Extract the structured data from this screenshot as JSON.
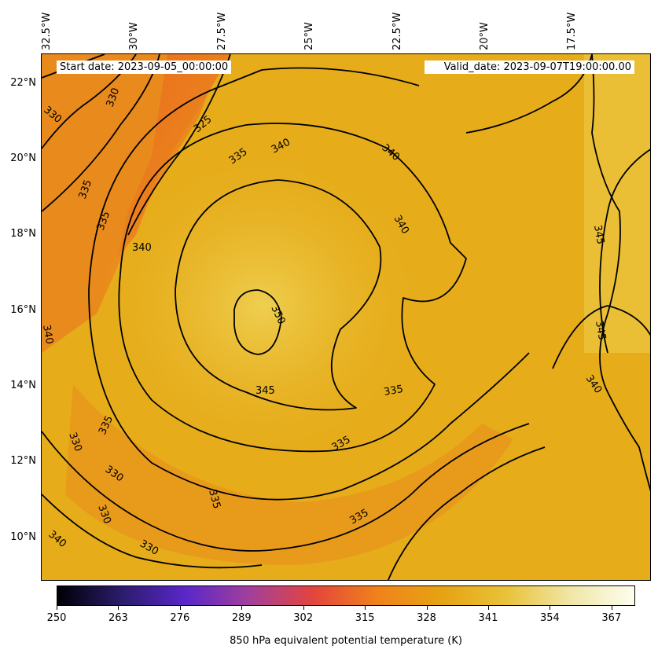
{
  "header": {
    "start_date": "Start date: 2023-09-05_00:00:00",
    "valid_date": "Valid_date: 2023-09-07T19:00:00.00"
  },
  "axes": {
    "longitude_labels": [
      "32.5°W",
      "30°W",
      "27.5°W",
      "25°W",
      "22.5°W",
      "20°W",
      "17.5°W"
    ],
    "latitude_labels": [
      "22°N",
      "20°N",
      "18°N",
      "16°N",
      "14°N",
      "12°N",
      "10°N"
    ],
    "lon_range": [
      -32.5,
      -15.0
    ],
    "lat_range": [
      8.9,
      22.8
    ]
  },
  "colorbar": {
    "title": "850 hPa equivalent potential temperature (K)",
    "ticks": [
      "250",
      "263",
      "276",
      "289",
      "302",
      "315",
      "328",
      "341",
      "354",
      "367"
    ],
    "range": [
      250,
      372
    ],
    "colormap": [
      "#000004",
      "#2b1c6b",
      "#5a27c9",
      "#a33f9b",
      "#e4453c",
      "#f0831a",
      "#e6a313",
      "#e9c239",
      "#f1e6a6",
      "#fcfeee"
    ]
  },
  "contour_labels": [
    "325",
    "330",
    "335",
    "340",
    "345",
    "350"
  ],
  "colors": {
    "field_base": "#e6ac1a",
    "field_warm": "#ecc23a",
    "field_cool": "#ec6a1e",
    "contour": "#000000"
  }
}
